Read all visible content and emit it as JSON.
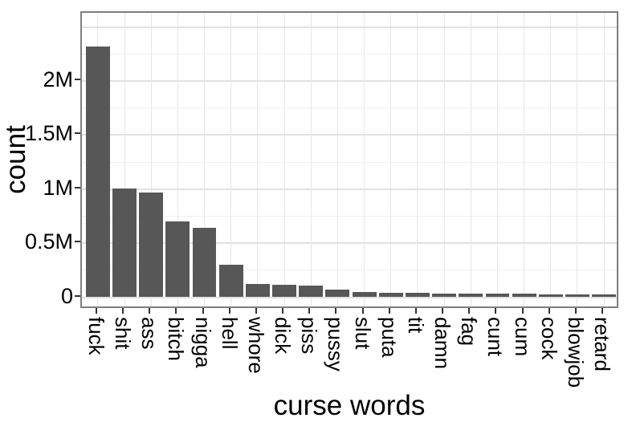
{
  "figure": {
    "background": "#ffffff",
    "text_color": "#000000"
  },
  "chart_data": {
    "type": "bar",
    "title": "",
    "xlabel": "curse words",
    "ylabel": "count",
    "categories": [
      "fuck",
      "shit",
      "ass",
      "bitch",
      "nigga",
      "hell",
      "whore",
      "dick",
      "piss",
      "pussy",
      "slut",
      "puta",
      "tit",
      "damn",
      "fag",
      "cunt",
      "cum",
      "cock",
      "blowjob",
      "retard"
    ],
    "values": [
      2320000,
      1005000,
      965000,
      700000,
      640000,
      300000,
      122000,
      114000,
      108000,
      70000,
      46000,
      43000,
      40000,
      37000,
      35000,
      33000,
      31000,
      29000,
      26000,
      24000
    ],
    "ylim": [
      0,
      2630000
    ],
    "y_ticks": [
      {
        "value": 0,
        "label": "0"
      },
      {
        "value": 500000,
        "label": "0.5M"
      },
      {
        "value": 1000000,
        "label": "1M"
      },
      {
        "value": 1500000,
        "label": "1.5M"
      },
      {
        "value": 2000000,
        "label": "2M"
      }
    ],
    "y_major_step": 500000,
    "y_minor_step": 250000,
    "grid": true,
    "legend": "none",
    "x_label_rotation_deg": 90,
    "style": {
      "bar_color": "#575757",
      "panel_border_color": "#7f7f7f",
      "grid_major_color": "#e2e2e2",
      "grid_minor_color": "#f0f0f0",
      "tick_color": "#333333"
    }
  }
}
